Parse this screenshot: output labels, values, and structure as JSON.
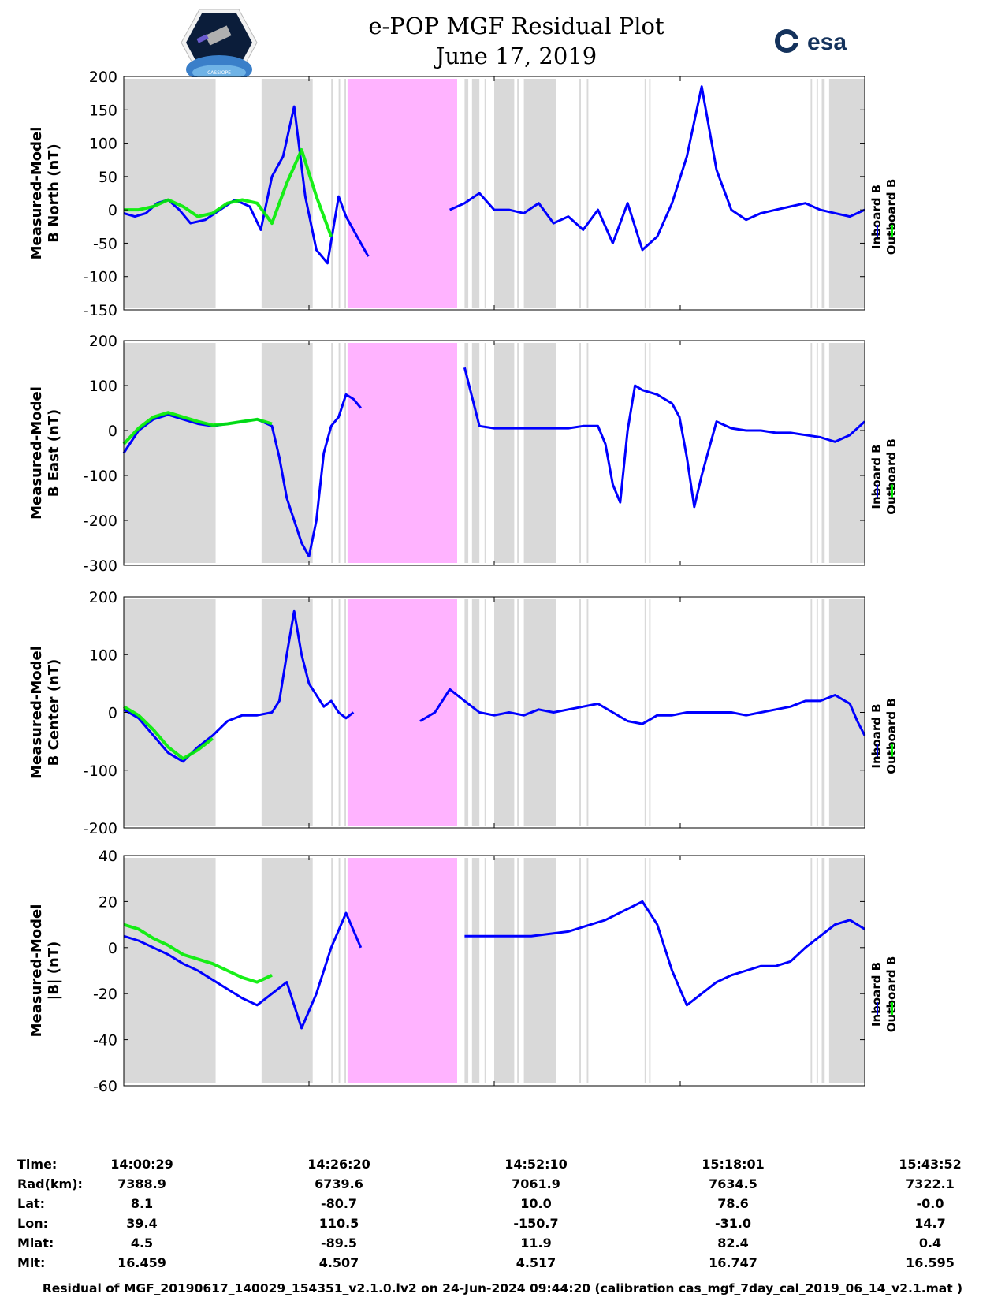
{
  "header": {
    "title": "e-POP MGF Residual Plot",
    "date": "June 17, 2019",
    "left_logo_text": "CASSIOPE",
    "right_logo_text": "esa"
  },
  "colors": {
    "inboard": "#0000ff",
    "outboard": "#00ee00",
    "gray_band": "#d9d9d9",
    "pink_band": "#ffb3ff"
  },
  "chart_data": [
    {
      "type": "line",
      "ylabel": [
        "Measured-Model",
        "B North (nT)"
      ],
      "ylim": [
        -150,
        200
      ],
      "yticks": [
        -150,
        -100,
        -50,
        0,
        50,
        100,
        150,
        200
      ],
      "legend": [
        "Inboard B",
        "Outboard B"
      ],
      "series": [
        {
          "name": "Inboard B",
          "x": [
            0,
            1.5,
            3,
            4.5,
            6,
            7.5,
            9,
            11,
            13,
            15,
            17,
            18.5,
            20,
            21.5,
            23,
            24.5,
            26,
            27.5,
            29,
            30,
            31.5,
            33,
            34,
            36,
            38,
            39,
            42,
            44,
            46,
            48,
            50,
            52,
            54,
            56,
            58,
            60,
            62,
            64,
            66,
            68,
            70,
            72,
            74,
            76,
            78,
            80,
            82,
            84,
            86,
            88,
            90,
            92,
            94,
            96,
            98,
            100
          ],
          "y": [
            -5,
            -10,
            -5,
            10,
            15,
            0,
            -20,
            -15,
            0,
            15,
            5,
            -30,
            50,
            80,
            155,
            20,
            -60,
            -80,
            20,
            -10,
            -40,
            -70,
            null,
            null,
            null,
            null,
            null,
            0,
            10,
            25,
            0,
            0,
            -5,
            10,
            -20,
            -10,
            -30,
            0,
            -50,
            10,
            -60,
            -40,
            10,
            80,
            185,
            60,
            0,
            -15,
            -5,
            0,
            5,
            10,
            0,
            -5,
            -10,
            0
          ]
        },
        {
          "name": "Outboard B",
          "x": [
            0,
            2,
            4,
            6,
            8,
            10,
            12,
            14,
            16,
            18,
            20,
            22,
            24,
            26,
            28
          ],
          "y": [
            0,
            0,
            5,
            15,
            5,
            -10,
            -5,
            10,
            15,
            10,
            -20,
            40,
            90,
            20,
            -40
          ]
        }
      ]
    },
    {
      "type": "line",
      "ylabel": [
        "Measured-Model",
        "B East (nT)"
      ],
      "ylim": [
        -300,
        200
      ],
      "yticks": [
        -300,
        -200,
        -100,
        0,
        100,
        200
      ],
      "legend": [
        "Inboard B",
        "Outboard B"
      ],
      "series": [
        {
          "name": "Inboard B",
          "x": [
            0,
            2,
            4,
            6,
            8,
            10,
            12,
            14,
            16,
            18,
            20,
            21,
            22,
            24,
            25,
            26,
            27,
            28,
            29,
            30,
            31,
            32,
            34,
            36,
            38,
            40,
            44,
            46,
            48,
            50,
            52,
            54,
            56,
            58,
            60,
            62,
            64,
            65,
            66,
            67,
            68,
            69,
            70,
            72,
            74,
            75,
            76,
            77,
            78,
            80,
            82,
            84,
            86,
            88,
            90,
            92,
            94,
            96,
            98,
            100
          ],
          "y": [
            -50,
            0,
            25,
            35,
            25,
            15,
            10,
            15,
            20,
            25,
            10,
            -60,
            -150,
            -250,
            -280,
            -200,
            -50,
            10,
            30,
            80,
            70,
            50,
            null,
            null,
            null,
            null,
            null,
            140,
            10,
            5,
            5,
            5,
            5,
            5,
            5,
            10,
            10,
            -30,
            -120,
            -160,
            0,
            100,
            90,
            80,
            60,
            30,
            -60,
            -170,
            -100,
            20,
            5,
            0,
            0,
            -5,
            -5,
            -10,
            -15,
            -25,
            -10,
            20
          ]
        },
        {
          "name": "Outboard B",
          "x": [
            0,
            2,
            4,
            6,
            8,
            10,
            12,
            14,
            16,
            18,
            20
          ],
          "y": [
            -30,
            5,
            30,
            40,
            30,
            20,
            12,
            15,
            20,
            25,
            15
          ]
        }
      ]
    },
    {
      "type": "line",
      "ylabel": [
        "Measured-Model",
        "B Center (nT)"
      ],
      "ylim": [
        -200,
        200
      ],
      "yticks": [
        -200,
        -100,
        0,
        100,
        200
      ],
      "legend": [
        "Inboard B",
        "Outboard B"
      ],
      "series": [
        {
          "name": "Inboard B",
          "x": [
            0,
            2,
            4,
            6,
            8,
            10,
            12,
            14,
            16,
            18,
            20,
            21,
            22,
            23,
            24,
            25,
            26,
            27,
            28,
            29,
            30,
            31,
            32,
            38,
            40,
            42,
            44,
            46,
            48,
            50,
            52,
            54,
            56,
            58,
            60,
            62,
            64,
            66,
            68,
            70,
            72,
            74,
            76,
            78,
            80,
            82,
            84,
            86,
            88,
            90,
            92,
            94,
            96,
            98,
            99,
            100
          ],
          "y": [
            5,
            -10,
            -40,
            -70,
            -85,
            -60,
            -40,
            -15,
            -5,
            -5,
            0,
            20,
            100,
            175,
            100,
            50,
            30,
            10,
            20,
            0,
            -10,
            0,
            null,
            null,
            -15,
            0,
            40,
            20,
            0,
            -5,
            0,
            -5,
            5,
            0,
            5,
            10,
            15,
            0,
            -15,
            -20,
            -5,
            -5,
            0,
            0,
            0,
            0,
            -5,
            0,
            5,
            10,
            20,
            20,
            30,
            15,
            -15,
            -40
          ]
        },
        {
          "name": "Outboard B",
          "x": [
            0,
            2,
            4,
            6,
            8,
            10,
            12
          ],
          "y": [
            10,
            -5,
            -30,
            -60,
            -80,
            -65,
            -45
          ]
        }
      ]
    },
    {
      "type": "line",
      "ylabel": [
        "Measured-Model",
        "|B| (nT)"
      ],
      "ylim": [
        -60,
        40
      ],
      "yticks": [
        -60,
        -40,
        -20,
        0,
        20,
        40
      ],
      "legend": [
        "Inboard B",
        "Outboard B"
      ],
      "series": [
        {
          "name": "Inboard B",
          "x": [
            0,
            2,
            4,
            6,
            8,
            10,
            12,
            14,
            16,
            18,
            20,
            22,
            24,
            26,
            28,
            30,
            32,
            40,
            46,
            50,
            55,
            60,
            65,
            70,
            72,
            74,
            76,
            78,
            80,
            82,
            84,
            86,
            88,
            90,
            92,
            94,
            96,
            98,
            100
          ],
          "y": [
            5,
            3,
            0,
            -3,
            -7,
            -10,
            -14,
            -18,
            -22,
            -25,
            -20,
            -15,
            -35,
            -20,
            0,
            15,
            0,
            null,
            5,
            5,
            5,
            7,
            12,
            20,
            10,
            -10,
            -25,
            -20,
            -15,
            -12,
            -10,
            -8,
            -8,
            -6,
            0,
            5,
            10,
            12,
            8
          ]
        },
        {
          "name": "Outboard B",
          "x": [
            0,
            2,
            4,
            6,
            8,
            10,
            12,
            14,
            16,
            18,
            20
          ],
          "y": [
            10,
            8,
            4,
            1,
            -3,
            -5,
            -7,
            -10,
            -13,
            -15,
            -12
          ]
        }
      ]
    }
  ],
  "time_axis": {
    "rows": [
      {
        "label": "Time:",
        "values": [
          "14:00:29",
          "14:26:20",
          "14:52:10",
          "15:18:01",
          "15:43:52"
        ]
      },
      {
        "label": "Rad(km):",
        "values": [
          "7388.9",
          "6739.6",
          "7061.9",
          "7634.5",
          "7322.1"
        ]
      },
      {
        "label": "Lat:",
        "values": [
          "8.1",
          "-80.7",
          "10.0",
          "78.6",
          "-0.0"
        ]
      },
      {
        "label": "Lon:",
        "values": [
          "39.4",
          "110.5",
          "-150.7",
          "-31.0",
          "14.7"
        ]
      },
      {
        "label": "Mlat:",
        "values": [
          "4.5",
          "-89.5",
          "11.9",
          "82.4",
          "0.4"
        ]
      },
      {
        "label": "Mlt:",
        "values": [
          "16.459",
          "4.507",
          "4.517",
          "16.747",
          "16.595"
        ]
      }
    ]
  },
  "footer": "Residual of MGF_20190617_140029_154351_v2.1.0.lv2 on 24-Jun-2024 09:44:20 (calibration cas_mgf_7day_cal_2019_06_14_v2.1.mat )"
}
